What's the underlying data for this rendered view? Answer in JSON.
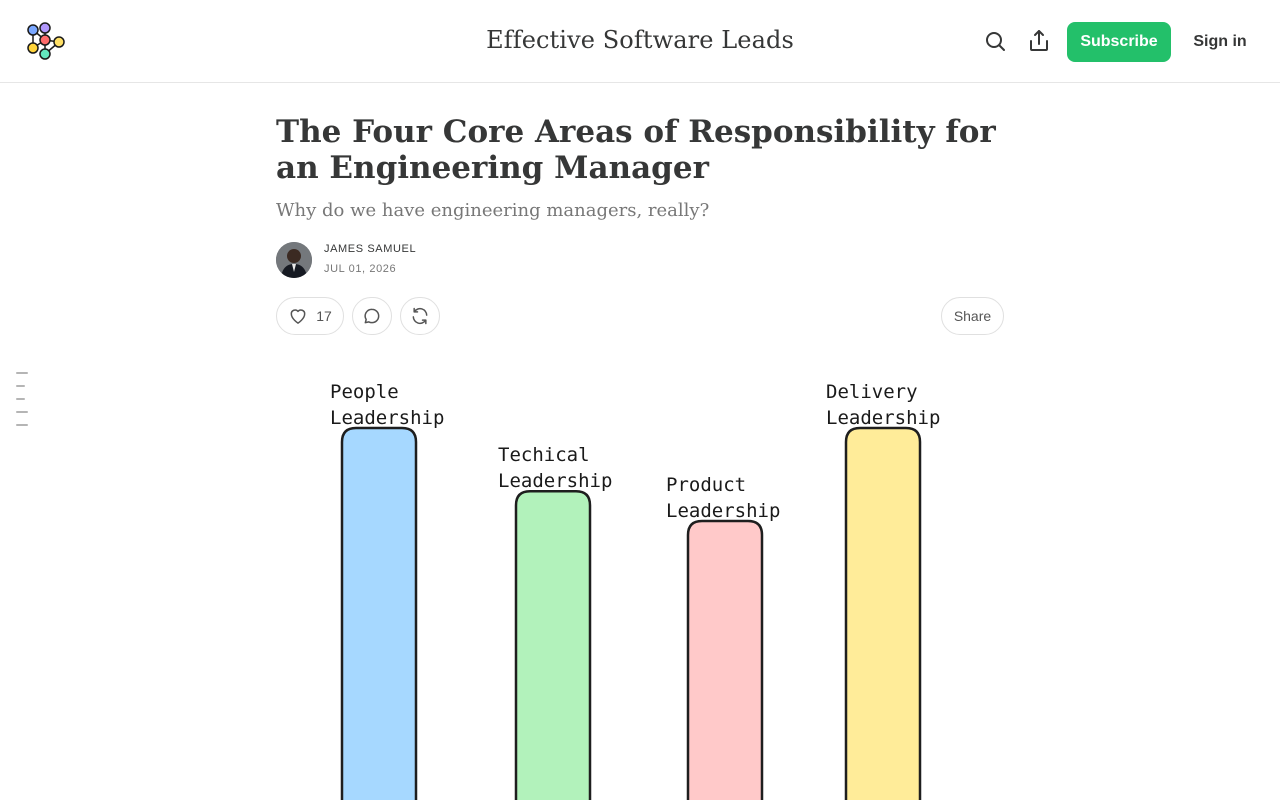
{
  "header": {
    "publication_title": "Effective Software Leads",
    "subscribe_label": "Subscribe",
    "signin_label": "Sign in",
    "icons": [
      "logo-icon",
      "search-icon",
      "share-icon"
    ]
  },
  "post": {
    "title": "The Four Core Areas of Responsibility for an Engineering Manager",
    "subtitle": "Why do we have engineering managers, really?",
    "author": "JAMES SAMUEL",
    "date": "JUL 01, 2026"
  },
  "actions": {
    "like_count": "17",
    "share_label": "Share",
    "icons": [
      "heart-icon",
      "comment-icon",
      "restack-icon"
    ]
  },
  "colors": {
    "accent": "#23c06a",
    "bars": [
      "#a6d8ff",
      "#b2f2bb",
      "#ffc9c9",
      "#ffec99"
    ]
  },
  "chart_data": {
    "type": "bar",
    "categories": [
      [
        "People",
        "Leadership"
      ],
      [
        "Techical",
        "Leadership"
      ],
      [
        "Product",
        "Leadership"
      ],
      [
        "Delivery",
        "Leadership"
      ]
    ],
    "values": [
      100,
      83,
      75,
      100
    ],
    "ylim": [
      0,
      100
    ],
    "grid": false,
    "legend": "none"
  }
}
